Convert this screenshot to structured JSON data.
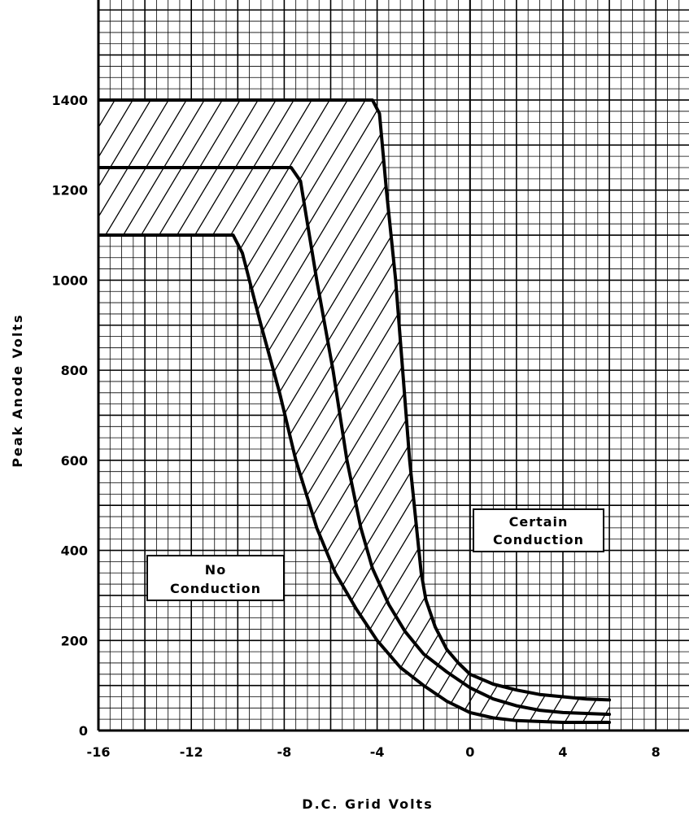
{
  "chart_data": {
    "type": "line",
    "title": "",
    "xlabel": "D.C. Grid Volts",
    "ylabel": "Peak Anode Volts",
    "xlim": [
      -16,
      10
    ],
    "ylim": [
      0,
      1600
    ],
    "x_ticks": [
      -16,
      -12,
      -8,
      -4,
      0,
      4,
      8
    ],
    "x_tick_labels": [
      "-16",
      "-12",
      "-8",
      "-4",
      "0",
      "4",
      "8"
    ],
    "y_ticks": [
      0,
      200,
      400,
      600,
      800,
      1000,
      1200,
      1400
    ],
    "y_tick_labels": [
      "0",
      "200",
      "400",
      "600",
      "800",
      "1000",
      "1200",
      "1400"
    ],
    "grid": true,
    "hatched_region": "between outer curves",
    "series": [
      {
        "points": [
          [
            -16,
            1400
          ],
          [
            -4.2,
            1400
          ],
          [
            -3.9,
            1370
          ],
          [
            -3.6,
            1200
          ],
          [
            -3.2,
            1000
          ],
          [
            -2.9,
            800
          ],
          [
            -2.6,
            600
          ],
          [
            -2.3,
            450
          ],
          [
            -2.1,
            350
          ],
          [
            -1.9,
            290
          ],
          [
            -1.5,
            230
          ],
          [
            -1.0,
            180
          ],
          [
            -0.5,
            150
          ],
          [
            0,
            125
          ],
          [
            1,
            103
          ],
          [
            2,
            90
          ],
          [
            3,
            80
          ],
          [
            4,
            75
          ],
          [
            5,
            70
          ],
          [
            6,
            68
          ]
        ]
      },
      {
        "points": [
          [
            -16,
            1250
          ],
          [
            -7.7,
            1250
          ],
          [
            -7.3,
            1220
          ],
          [
            -6.6,
            1000
          ],
          [
            -5.9,
            800
          ],
          [
            -5.3,
            600
          ],
          [
            -4.7,
            450
          ],
          [
            -4.2,
            360
          ],
          [
            -3.5,
            280
          ],
          [
            -2.8,
            220
          ],
          [
            -2,
            170
          ],
          [
            -1,
            130
          ],
          [
            0,
            95
          ],
          [
            1,
            70
          ],
          [
            2,
            55
          ],
          [
            3,
            45
          ],
          [
            4,
            40
          ],
          [
            5,
            38
          ],
          [
            6,
            36
          ]
        ]
      },
      {
        "points": [
          [
            -16,
            1100
          ],
          [
            -10.2,
            1100
          ],
          [
            -9.8,
            1060
          ],
          [
            -9.0,
            900
          ],
          [
            -8.2,
            750
          ],
          [
            -7.5,
            600
          ],
          [
            -6.6,
            450
          ],
          [
            -5.8,
            350
          ],
          [
            -4.9,
            270
          ],
          [
            -4,
            200
          ],
          [
            -3,
            140
          ],
          [
            -2,
            100
          ],
          [
            -1,
            65
          ],
          [
            0,
            40
          ],
          [
            1,
            28
          ],
          [
            2,
            22
          ],
          [
            3,
            20
          ],
          [
            4,
            18
          ],
          [
            5,
            18
          ],
          [
            6,
            18
          ]
        ]
      }
    ],
    "annotations": [
      {
        "id": "no_conduction",
        "lines": [
          "No",
          "Conduction"
        ]
      },
      {
        "id": "certain_conduction",
        "lines": [
          "Certain",
          "Conduction"
        ]
      }
    ],
    "colors": {
      "curve": "#000000",
      "grid": "#000000",
      "background": "#ffffff"
    }
  }
}
